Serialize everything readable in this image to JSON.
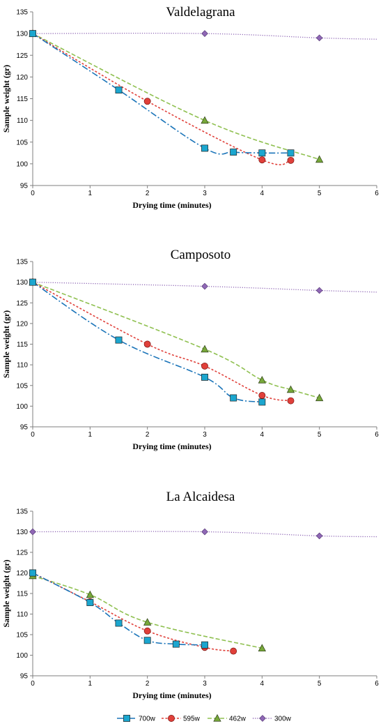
{
  "chart_data": [
    {
      "type": "line",
      "title": "Valdelagrana",
      "xlabel": "Drying time (minutes)",
      "ylabel": "Sample weight (gr)",
      "xlim": [
        0,
        6
      ],
      "ylim": [
        95,
        135
      ],
      "xticks": [
        0,
        1,
        2,
        3,
        4,
        5,
        6
      ],
      "yticks": [
        95,
        100,
        105,
        110,
        115,
        120,
        125,
        130,
        135
      ],
      "grid": false,
      "series": [
        {
          "name": "700w",
          "x": [
            0,
            1.5,
            3,
            3.5,
            4,
            4.5
          ],
          "y": [
            130,
            117,
            103.6,
            102.7,
            102.5,
            102.5
          ]
        },
        {
          "name": "595w",
          "x": [
            0,
            2,
            4,
            4.5
          ],
          "y": [
            130,
            114.4,
            100.9,
            100.8
          ]
        },
        {
          "name": "462w",
          "x": [
            0,
            3,
            5
          ],
          "y": [
            130,
            110,
            101
          ]
        },
        {
          "name": "300w",
          "x": [
            0,
            3,
            5
          ],
          "y": [
            130,
            130,
            129
          ],
          "trend_to": [
            6,
            128.7
          ]
        }
      ]
    },
    {
      "type": "line",
      "title": "Camposoto",
      "xlabel": "Drying time (minutes)",
      "ylabel": "Sample weight (gr)",
      "xlim": [
        0,
        6
      ],
      "ylim": [
        95,
        135
      ],
      "xticks": [
        0,
        1,
        2,
        3,
        4,
        5,
        6
      ],
      "yticks": [
        95,
        100,
        105,
        110,
        115,
        120,
        125,
        130,
        135
      ],
      "grid": false,
      "series": [
        {
          "name": "700w",
          "x": [
            0,
            1.5,
            3,
            3.5,
            4
          ],
          "y": [
            130,
            116,
            107,
            102,
            101
          ]
        },
        {
          "name": "595w",
          "x": [
            0,
            2,
            3,
            4,
            4.5
          ],
          "y": [
            130,
            115,
            109.7,
            102.6,
            101.3
          ]
        },
        {
          "name": "462w",
          "x": [
            0,
            3,
            4,
            4.5,
            5
          ],
          "y": [
            130,
            113.8,
            106.3,
            104,
            102
          ]
        },
        {
          "name": "300w",
          "x": [
            0,
            3,
            5
          ],
          "y": [
            130,
            129,
            128
          ],
          "trend_to": [
            6,
            127.6
          ]
        }
      ]
    },
    {
      "type": "line",
      "title": "La Alcaidesa",
      "xlabel": "Drying time (minutes)",
      "ylabel": "Sample weight (gr)",
      "xlim": [
        0,
        6
      ],
      "ylim": [
        95,
        135
      ],
      "xticks": [
        0,
        1,
        2,
        3,
        4,
        5,
        6
      ],
      "yticks": [
        95,
        100,
        105,
        110,
        115,
        120,
        125,
        130,
        135
      ],
      "grid": false,
      "series": [
        {
          "name": "700w",
          "x": [
            0,
            1,
            1.5,
            2,
            2.5,
            3
          ],
          "y": [
            120,
            112.8,
            107.8,
            103.6,
            102.7,
            102.5
          ]
        },
        {
          "name": "595w",
          "x": [
            0,
            1,
            2,
            3,
            3.5
          ],
          "y": [
            120,
            113,
            105.9,
            101.9,
            101
          ]
        },
        {
          "name": "462w",
          "x": [
            0,
            1,
            2,
            4
          ],
          "y": [
            119.3,
            114.7,
            108,
            101.7
          ]
        },
        {
          "name": "300w",
          "x": [
            0,
            3,
            5
          ],
          "y": [
            130,
            130,
            129
          ],
          "trend_to": [
            6,
            128.8
          ]
        }
      ]
    }
  ],
  "legend": {
    "placement": "bottom",
    "items": [
      {
        "name": "700w",
        "color": "#1ba6cf",
        "line_color": "#1a74b9",
        "marker": "square",
        "dash": "dash-dot"
      },
      {
        "name": "595w",
        "color": "#e0403a",
        "line_color": "#e0403a",
        "marker": "circle",
        "dash": "short-dash"
      },
      {
        "name": "462w",
        "color": "#77a83a",
        "line_color": "#8fc050",
        "marker": "triangle",
        "dash": "dash"
      },
      {
        "name": "300w",
        "color": "#8f67b5",
        "line_color": "#8f67b5",
        "marker": "diamond",
        "dash": "dot"
      }
    ]
  }
}
